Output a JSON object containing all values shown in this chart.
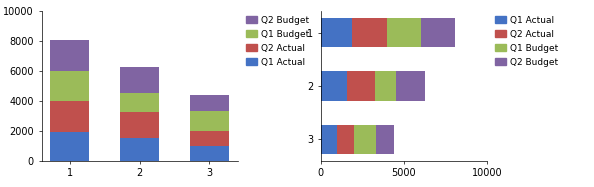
{
  "categories": [
    1,
    2,
    3
  ],
  "q1_actual": [
    1900,
    1550,
    1000
  ],
  "q2_actual": [
    2100,
    1700,
    1000
  ],
  "q1_budget": [
    2000,
    1300,
    1300
  ],
  "q2_budget": [
    2100,
    1700,
    1100
  ],
  "colors": {
    "Q1 Actual": "#4472C4",
    "Q2 Actual": "#C0504D",
    "Q1 Budget": "#9BBB59",
    "Q2 Budget": "#8064A2"
  },
  "bar_ylim": [
    0,
    10000
  ],
  "bar_yticks": [
    0,
    2000,
    4000,
    6000,
    8000,
    10000
  ],
  "bar_xticks": [
    1,
    2,
    3
  ],
  "hbar_xlim": [
    0,
    10000
  ],
  "hbar_xticks": [
    0,
    5000,
    10000
  ],
  "hbar_yticks": [
    1,
    2,
    3
  ],
  "legend_bar_order": [
    "Q2 Budget",
    "Q1 Budget",
    "Q2 Actual",
    "Q1 Actual"
  ],
  "legend_hbar_order": [
    "Q1 Actual",
    "Q2 Actual",
    "Q1 Budget",
    "Q2 Budget"
  ],
  "background_color": "#FFFFFF"
}
